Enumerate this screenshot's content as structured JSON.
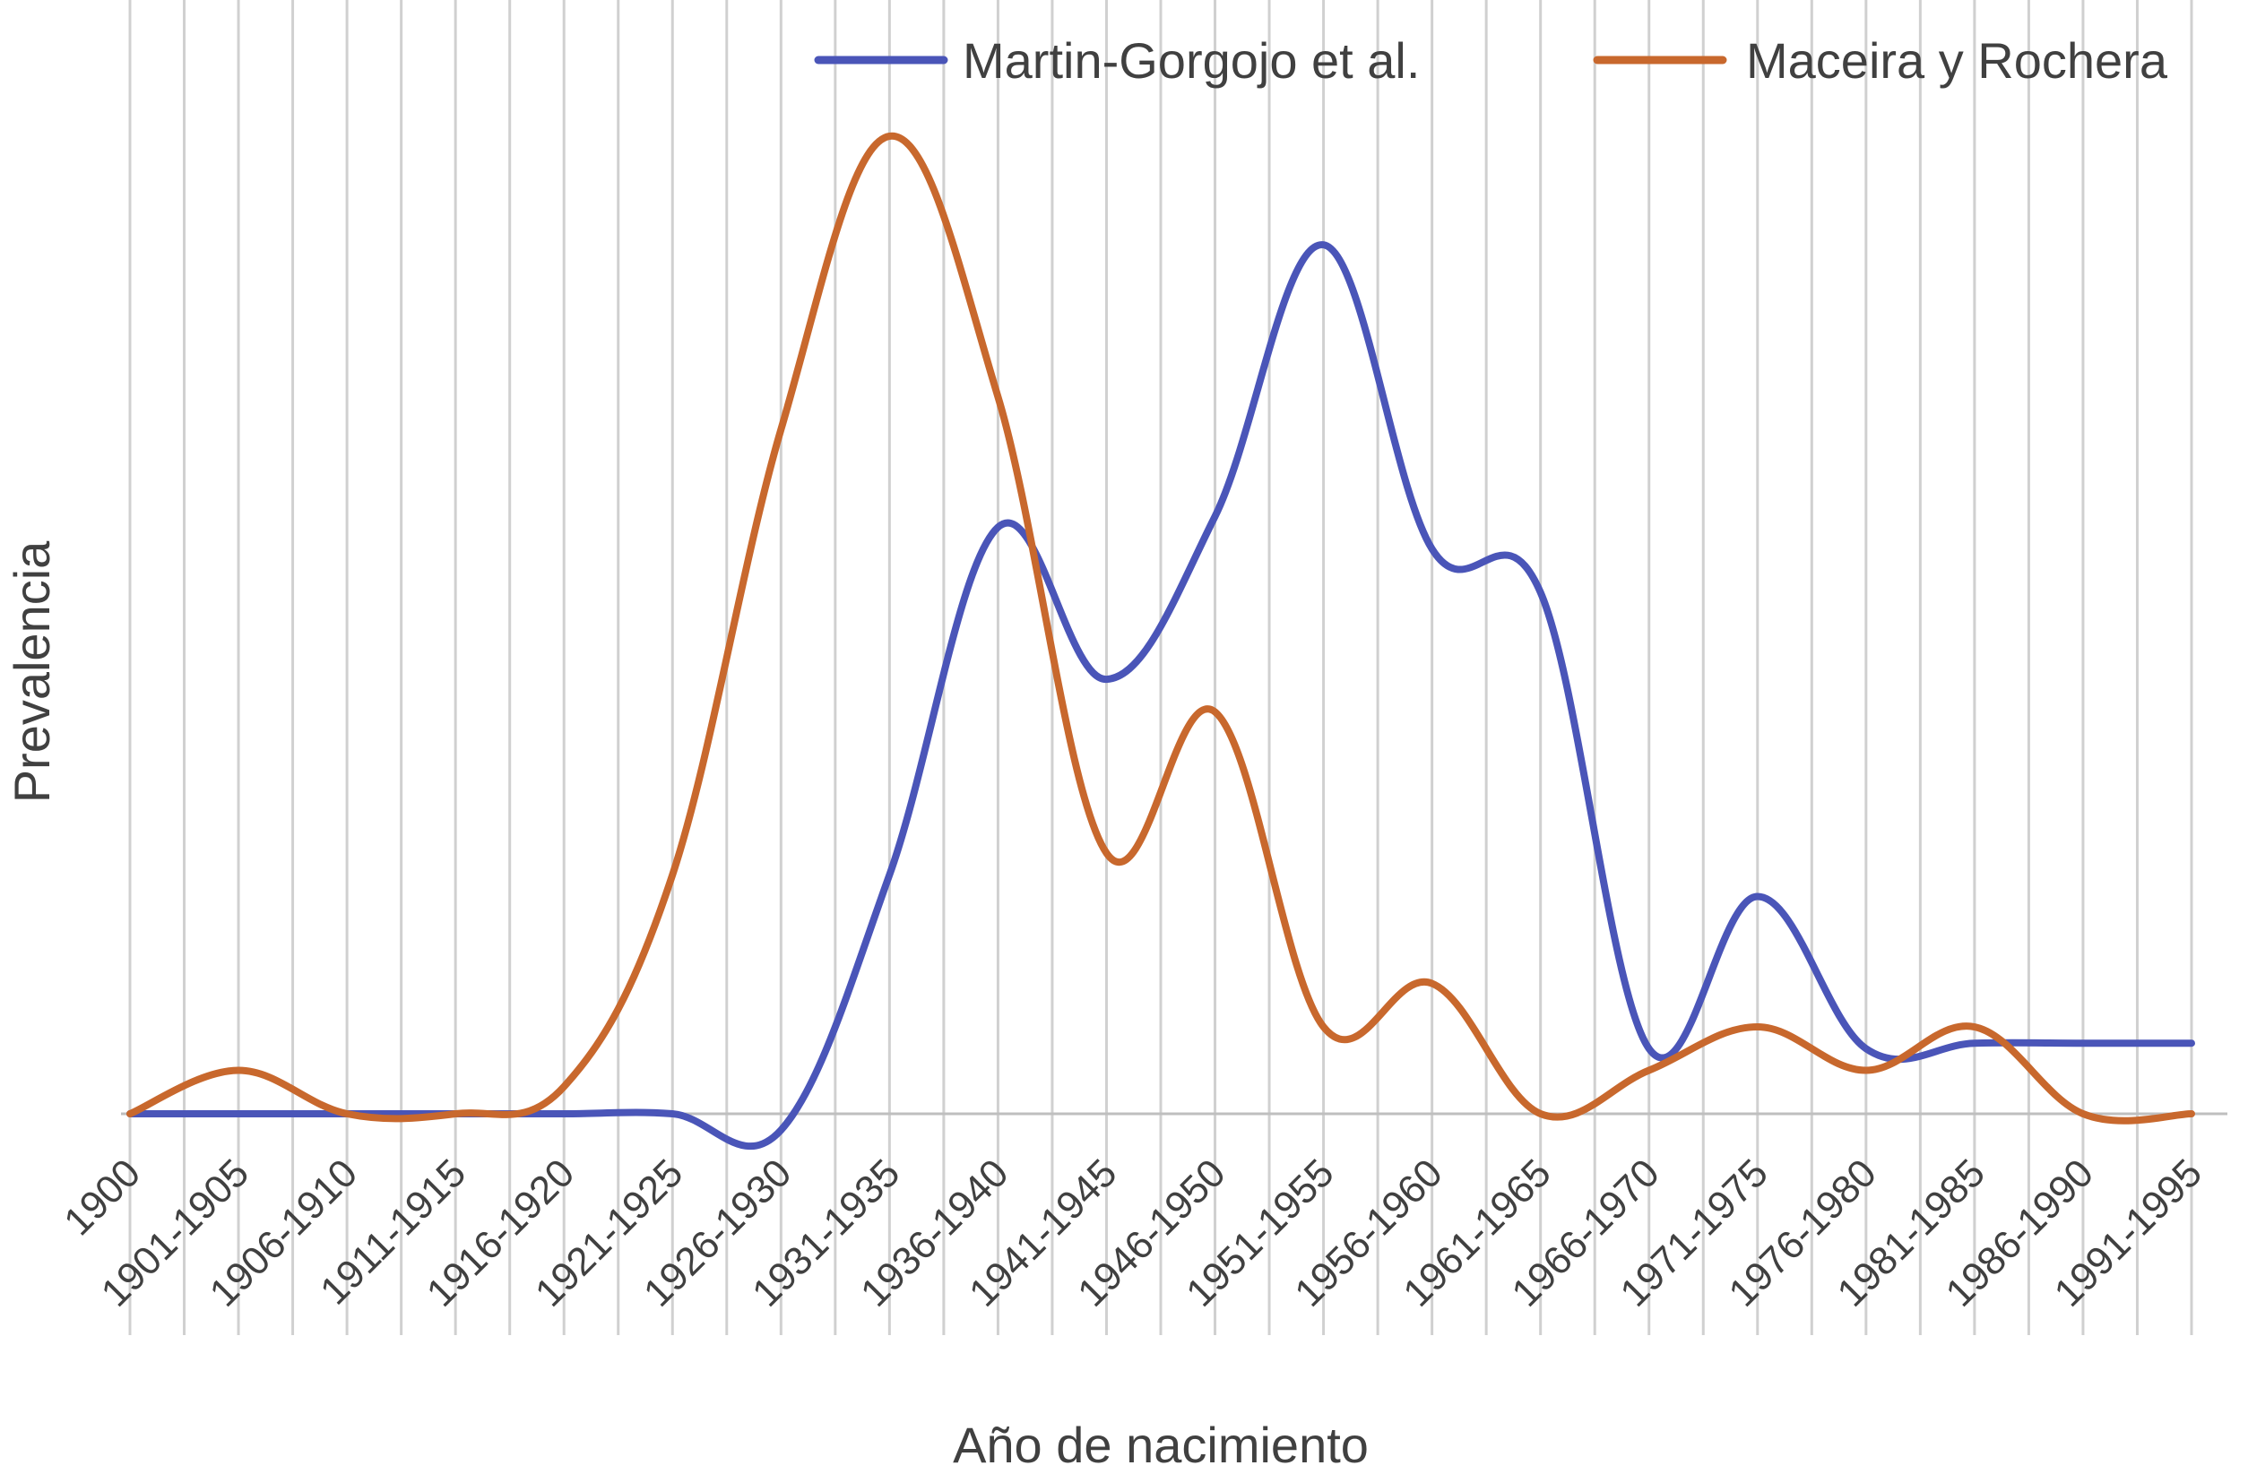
{
  "chart_data": {
    "type": "line",
    "title": "",
    "xlabel": "Año de nacimiento",
    "ylabel": "Prevalencia",
    "categories": [
      "1900",
      "1901-1905",
      "1906-1910",
      "1911-1915",
      "1916-1920",
      "1921-1925",
      "1926-1930",
      "1931-1935",
      "1936-1940",
      "1941-1945",
      "1946-1950",
      "1951-1955",
      "1956-1960",
      "1961-1965",
      "1966-1970",
      "1971-1975",
      "1976-1980",
      "1981-1985",
      "1986-1990",
      "1991-1995"
    ],
    "grid": "vertical",
    "legend": "top-right",
    "y_axis_ticks": false,
    "ylim": [
      -2,
      90
    ],
    "series": [
      {
        "name": "Martin-Gorgojo et al.",
        "color": "#4a55b8",
        "values": [
          0,
          0,
          0,
          0,
          0,
          0,
          -1.5,
          22,
          54,
          40,
          55,
          80,
          52,
          48,
          6,
          20,
          6,
          6.5,
          6.5,
          6.5
        ]
      },
      {
        "name": "Maceira y Rochera",
        "color": "#c8682d",
        "values": [
          0,
          4,
          0,
          0,
          2.5,
          22,
          63,
          90,
          66,
          24,
          37,
          8,
          12,
          0,
          4,
          8,
          4,
          8,
          0,
          0
        ]
      }
    ]
  }
}
